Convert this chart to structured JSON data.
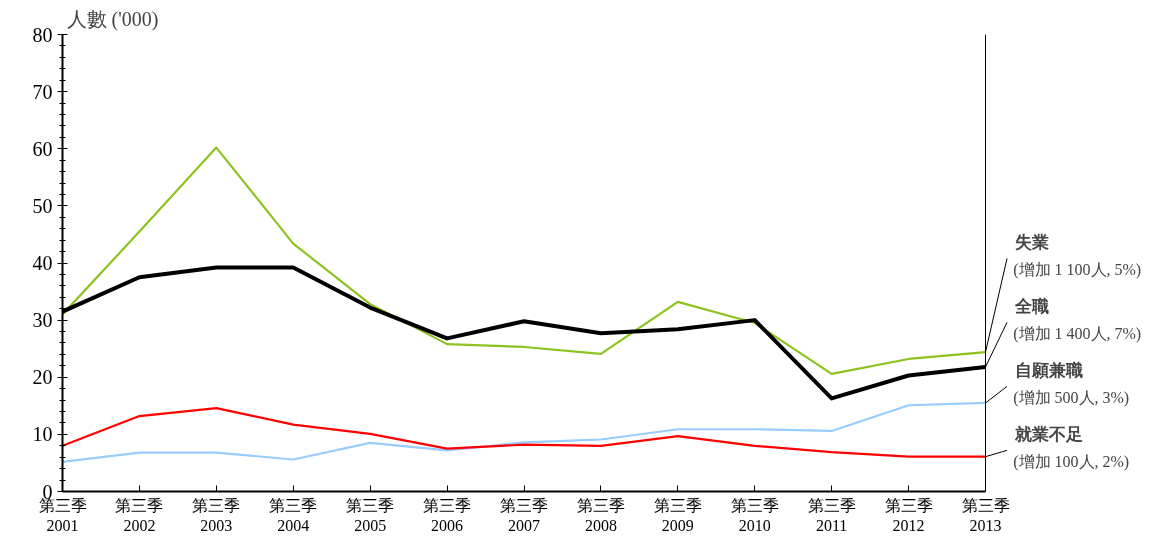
{
  "chart_data": {
    "type": "line",
    "ylabel": "人數 ('000)",
    "categories": [
      "第三季\n2001",
      "第三季\n2002",
      "第三季\n2003",
      "第三季\n2004",
      "第三季\n2005",
      "第三季\n2006",
      "第三季\n2007",
      "第三季\n2008",
      "第三季\n2009",
      "第三季\n2010",
      "第三季\n2011",
      "第三季\n2012",
      "第三季\n2013"
    ],
    "series": [
      {
        "name": "失業",
        "color": "#8dc21f",
        "values": [
          31.0,
          45.5,
          60.2,
          43.4,
          32.8,
          25.8,
          25.3,
          24.1,
          33.2,
          29.5,
          20.6,
          23.2,
          24.4
        ]
      },
      {
        "name": "全職",
        "color": "#000000",
        "values": [
          31.5,
          37.5,
          39.2,
          39.2,
          32.2,
          26.8,
          29.8,
          27.7,
          28.4,
          30.0,
          16.3,
          20.3,
          21.8
        ]
      },
      {
        "name": "自願兼職",
        "color": "#99ccff",
        "values": [
          5.2,
          6.8,
          6.8,
          5.6,
          8.5,
          7.2,
          8.6,
          9.1,
          10.9,
          10.9,
          10.6,
          15.1,
          15.5
        ]
      },
      {
        "name": "就業不足",
        "color": "#ff0000",
        "values": [
          8.0,
          13.2,
          14.6,
          11.7,
          10.1,
          7.5,
          8.2,
          8.0,
          9.7,
          8.0,
          6.9,
          6.1,
          6.1
        ]
      }
    ],
    "annotations": [
      {
        "text": "(增加 1 100人, 5%)",
        "x": "第三季\n2013",
        "y": 24.4
      },
      {
        "text": "(增加 1 400人, 7%)",
        "x": "第三季\n2013",
        "y": 21.8
      },
      {
        "text": "(增加 500人, 3%)",
        "x": "第三季\n2013",
        "y": 15.5
      },
      {
        "text": "(增加 100人, 2%)",
        "x": "第三季\n2013",
        "y": 6.1
      }
    ],
    "ylim": [
      0,
      80
    ],
    "yticks": [
      0,
      10,
      20,
      30,
      40,
      50,
      60,
      70,
      80
    ],
    "grid": false,
    "legend": false,
    "marker": "none",
    "line_style": "solid"
  }
}
